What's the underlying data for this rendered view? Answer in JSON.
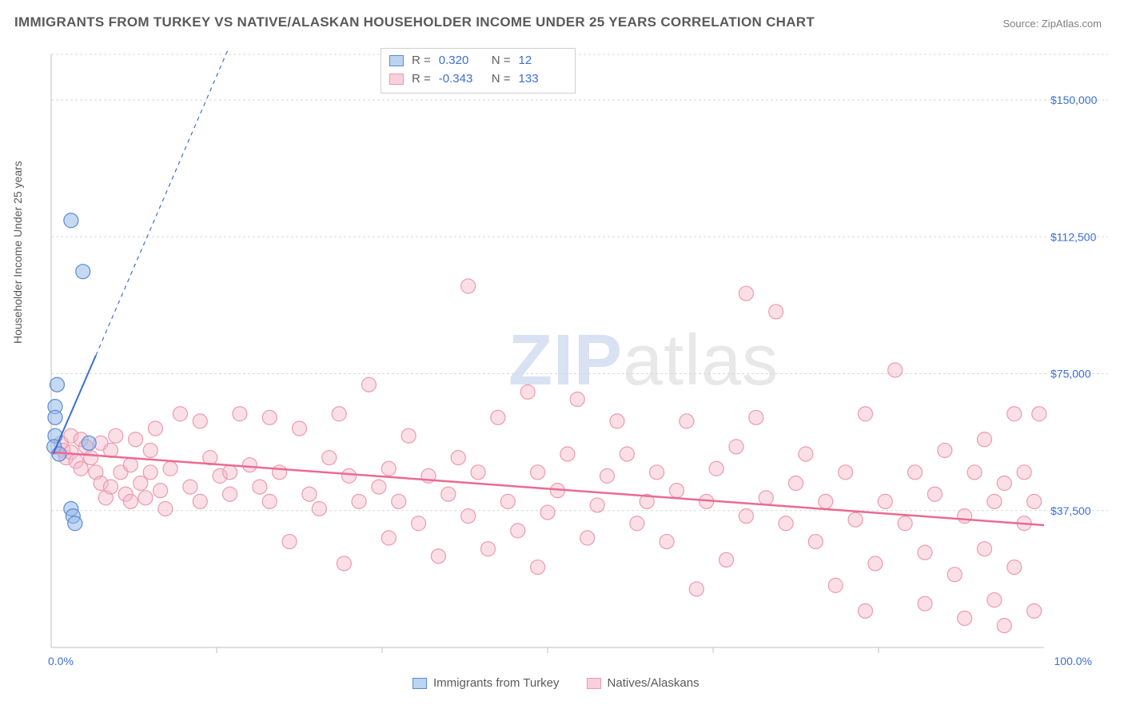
{
  "title": "IMMIGRANTS FROM TURKEY VS NATIVE/ALASKAN HOUSEHOLDER INCOME UNDER 25 YEARS CORRELATION CHART",
  "source": "Source: ZipAtlas.com",
  "y_axis_label": "Householder Income Under 25 years",
  "watermark_bold": "ZIP",
  "watermark_rest": "atlas",
  "chart": {
    "type": "scatter",
    "background_color": "#ffffff",
    "grid_color": "#d8d8d8",
    "axis_color": "#bfbfbf",
    "xlim": [
      0,
      100
    ],
    "ylim": [
      0,
      162500
    ],
    "x_ticks": [
      0,
      100
    ],
    "x_tick_labels": [
      "0.0%",
      "100.0%"
    ],
    "x_minor_ticks": [
      16.67,
      33.33,
      50,
      66.67,
      83.33
    ],
    "y_ticks": [
      37500,
      75000,
      112500,
      150000
    ],
    "y_tick_labels": [
      "$37,500",
      "$75,000",
      "$112,500",
      "$150,000"
    ],
    "marker_radius": 9,
    "marker_opacity": 0.5,
    "series": [
      {
        "name": "Immigrants from Turkey",
        "color_fill": "#98b9ea",
        "color_stroke": "#5a8ad4",
        "R": "0.320",
        "N": "12",
        "trend": {
          "x1": 0.2,
          "y1": 53000,
          "x2": 4.5,
          "y2": 80000,
          "extrap_x2": 18,
          "extrap_y2": 165000
        },
        "points": [
          {
            "x": 2.0,
            "y": 117000
          },
          {
            "x": 3.2,
            "y": 103000
          },
          {
            "x": 0.6,
            "y": 72000
          },
          {
            "x": 0.4,
            "y": 66000
          },
          {
            "x": 0.4,
            "y": 63000
          },
          {
            "x": 0.4,
            "y": 58000
          },
          {
            "x": 0.3,
            "y": 55000
          },
          {
            "x": 3.8,
            "y": 56000
          },
          {
            "x": 0.8,
            "y": 53000
          },
          {
            "x": 2.0,
            "y": 38000
          },
          {
            "x": 2.2,
            "y": 36000
          },
          {
            "x": 2.4,
            "y": 34000
          }
        ]
      },
      {
        "name": "Natives/Alaskans",
        "color_fill": "#f7b8c9",
        "color_stroke": "#ec9ab0",
        "R": "-0.343",
        "N": "133",
        "trend": {
          "x1": 0,
          "y1": 53500,
          "x2": 100,
          "y2": 33500
        },
        "points": [
          {
            "x": 1,
            "y": 56000
          },
          {
            "x": 1.2,
            "y": 54000
          },
          {
            "x": 1.5,
            "y": 52000
          },
          {
            "x": 2,
            "y": 53500
          },
          {
            "x": 2,
            "y": 58000
          },
          {
            "x": 2.5,
            "y": 51000
          },
          {
            "x": 3,
            "y": 57000
          },
          {
            "x": 3,
            "y": 49000
          },
          {
            "x": 3.5,
            "y": 55000
          },
          {
            "x": 4,
            "y": 52000
          },
          {
            "x": 4.5,
            "y": 48000
          },
          {
            "x": 5,
            "y": 45000
          },
          {
            "x": 5,
            "y": 56000
          },
          {
            "x": 5.5,
            "y": 41000
          },
          {
            "x": 6,
            "y": 54000
          },
          {
            "x": 6,
            "y": 44000
          },
          {
            "x": 6.5,
            "y": 58000
          },
          {
            "x": 7,
            "y": 48000
          },
          {
            "x": 7.5,
            "y": 42000
          },
          {
            "x": 8,
            "y": 40000
          },
          {
            "x": 8,
            "y": 50000
          },
          {
            "x": 8.5,
            "y": 57000
          },
          {
            "x": 9,
            "y": 45000
          },
          {
            "x": 9.5,
            "y": 41000
          },
          {
            "x": 10,
            "y": 48000
          },
          {
            "x": 10,
            "y": 54000
          },
          {
            "x": 10.5,
            "y": 60000
          },
          {
            "x": 11,
            "y": 43000
          },
          {
            "x": 11.5,
            "y": 38000
          },
          {
            "x": 12,
            "y": 49000
          },
          {
            "x": 13,
            "y": 64000
          },
          {
            "x": 14,
            "y": 44000
          },
          {
            "x": 15,
            "y": 40000
          },
          {
            "x": 15,
            "y": 62000
          },
          {
            "x": 16,
            "y": 52000
          },
          {
            "x": 17,
            "y": 47000
          },
          {
            "x": 18,
            "y": 42000
          },
          {
            "x": 18,
            "y": 48000
          },
          {
            "x": 19,
            "y": 64000
          },
          {
            "x": 20,
            "y": 50000
          },
          {
            "x": 21,
            "y": 44000
          },
          {
            "x": 22,
            "y": 40000
          },
          {
            "x": 22,
            "y": 63000
          },
          {
            "x": 23,
            "y": 48000
          },
          {
            "x": 24,
            "y": 29000
          },
          {
            "x": 25,
            "y": 60000
          },
          {
            "x": 26,
            "y": 42000
          },
          {
            "x": 27,
            "y": 38000
          },
          {
            "x": 28,
            "y": 52000
          },
          {
            "x": 29,
            "y": 64000
          },
          {
            "x": 29.5,
            "y": 23000
          },
          {
            "x": 30,
            "y": 47000
          },
          {
            "x": 31,
            "y": 40000
          },
          {
            "x": 32,
            "y": 72000
          },
          {
            "x": 33,
            "y": 44000
          },
          {
            "x": 34,
            "y": 30000
          },
          {
            "x": 34,
            "y": 49000
          },
          {
            "x": 35,
            "y": 40000
          },
          {
            "x": 36,
            "y": 58000
          },
          {
            "x": 37,
            "y": 34000
          },
          {
            "x": 38,
            "y": 47000
          },
          {
            "x": 39,
            "y": 25000
          },
          {
            "x": 40,
            "y": 42000
          },
          {
            "x": 41,
            "y": 52000
          },
          {
            "x": 42,
            "y": 36000
          },
          {
            "x": 42,
            "y": 99000
          },
          {
            "x": 43,
            "y": 48000
          },
          {
            "x": 44,
            "y": 27000
          },
          {
            "x": 45,
            "y": 63000
          },
          {
            "x": 46,
            "y": 40000
          },
          {
            "x": 47,
            "y": 32000
          },
          {
            "x": 48,
            "y": 70000
          },
          {
            "x": 49,
            "y": 48000
          },
          {
            "x": 49,
            "y": 22000
          },
          {
            "x": 50,
            "y": 37000
          },
          {
            "x": 51,
            "y": 43000
          },
          {
            "x": 52,
            "y": 53000
          },
          {
            "x": 53,
            "y": 68000
          },
          {
            "x": 54,
            "y": 30000
          },
          {
            "x": 55,
            "y": 39000
          },
          {
            "x": 56,
            "y": 47000
          },
          {
            "x": 57,
            "y": 62000
          },
          {
            "x": 58,
            "y": 53000
          },
          {
            "x": 59,
            "y": 34000
          },
          {
            "x": 60,
            "y": 40000
          },
          {
            "x": 61,
            "y": 48000
          },
          {
            "x": 62,
            "y": 29000
          },
          {
            "x": 63,
            "y": 43000
          },
          {
            "x": 64,
            "y": 62000
          },
          {
            "x": 65,
            "y": 16000
          },
          {
            "x": 66,
            "y": 40000
          },
          {
            "x": 67,
            "y": 49000
          },
          {
            "x": 68,
            "y": 24000
          },
          {
            "x": 69,
            "y": 55000
          },
          {
            "x": 70,
            "y": 97000
          },
          {
            "x": 70,
            "y": 36000
          },
          {
            "x": 71,
            "y": 63000
          },
          {
            "x": 72,
            "y": 41000
          },
          {
            "x": 73,
            "y": 92000
          },
          {
            "x": 74,
            "y": 34000
          },
          {
            "x": 75,
            "y": 45000
          },
          {
            "x": 76,
            "y": 53000
          },
          {
            "x": 77,
            "y": 29000
          },
          {
            "x": 78,
            "y": 40000
          },
          {
            "x": 79,
            "y": 17000
          },
          {
            "x": 80,
            "y": 48000
          },
          {
            "x": 81,
            "y": 35000
          },
          {
            "x": 82,
            "y": 64000
          },
          {
            "x": 82,
            "y": 10000
          },
          {
            "x": 83,
            "y": 23000
          },
          {
            "x": 84,
            "y": 40000
          },
          {
            "x": 85,
            "y": 76000
          },
          {
            "x": 86,
            "y": 34000
          },
          {
            "x": 87,
            "y": 48000
          },
          {
            "x": 88,
            "y": 26000
          },
          {
            "x": 88,
            "y": 12000
          },
          {
            "x": 89,
            "y": 42000
          },
          {
            "x": 90,
            "y": 54000
          },
          {
            "x": 91,
            "y": 20000
          },
          {
            "x": 92,
            "y": 36000
          },
          {
            "x": 92,
            "y": 8000
          },
          {
            "x": 93,
            "y": 48000
          },
          {
            "x": 94,
            "y": 27000
          },
          {
            "x": 94,
            "y": 57000
          },
          {
            "x": 95,
            "y": 40000
          },
          {
            "x": 95,
            "y": 13000
          },
          {
            "x": 96,
            "y": 6000
          },
          {
            "x": 96,
            "y": 45000
          },
          {
            "x": 97,
            "y": 64000
          },
          {
            "x": 97,
            "y": 22000
          },
          {
            "x": 98,
            "y": 34000
          },
          {
            "x": 98,
            "y": 48000
          },
          {
            "x": 99,
            "y": 10000
          },
          {
            "x": 99,
            "y": 40000
          },
          {
            "x": 99.5,
            "y": 64000
          }
        ]
      }
    ]
  },
  "stats_labels": {
    "R": "R =",
    "N": "N ="
  },
  "legend": {
    "series1": "Immigrants from Turkey",
    "series2": "Natives/Alaskans"
  }
}
